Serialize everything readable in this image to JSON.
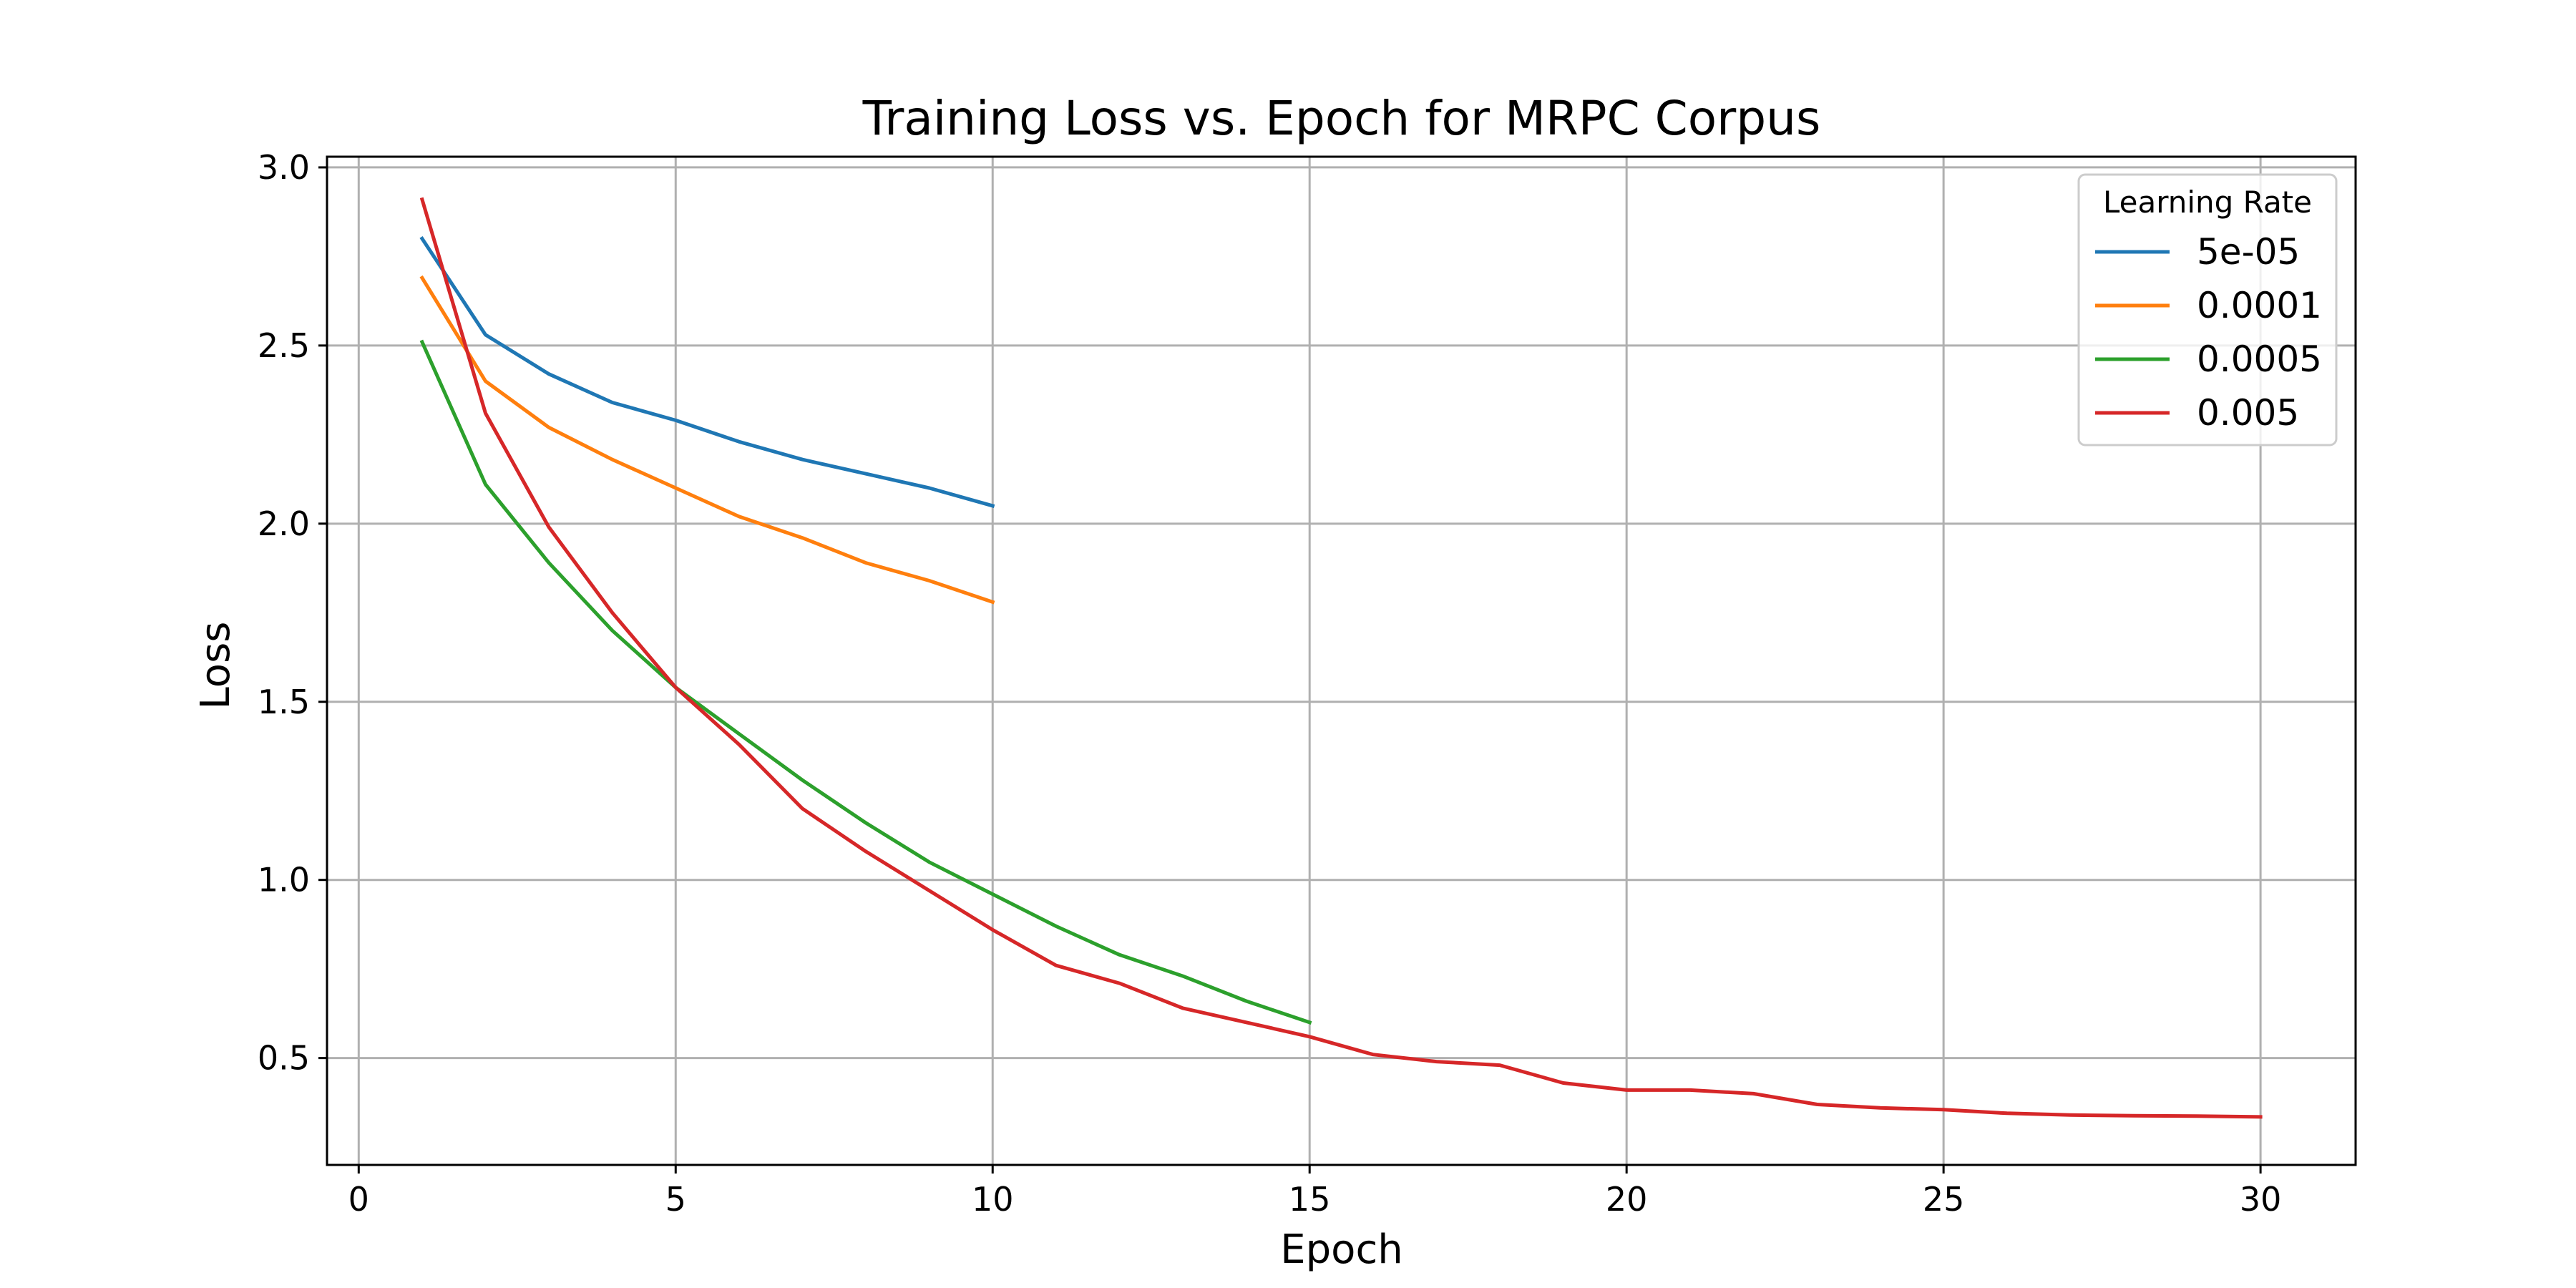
{
  "chart_data": {
    "type": "line",
    "title": "Training Loss vs. Epoch for MRPC Corpus",
    "xlabel": "Epoch",
    "ylabel": "Loss",
    "xlim": [
      -0.5,
      31.5
    ],
    "ylim": [
      0.2,
      3.03
    ],
    "xticks": [
      0,
      5,
      10,
      15,
      20,
      25,
      30
    ],
    "xtick_labels": [
      "0",
      "5",
      "10",
      "15",
      "20",
      "25",
      "30"
    ],
    "yticks": [
      0.5,
      1.0,
      1.5,
      2.0,
      2.5,
      3.0
    ],
    "ytick_labels": [
      "0.5",
      "1.0",
      "1.5",
      "2.0",
      "2.5",
      "3.0"
    ],
    "grid": true,
    "legend": {
      "title": "Learning Rate",
      "position": "top-right"
    },
    "series": [
      {
        "name": "5e-05",
        "color": "#1f77b4",
        "x": [
          1,
          2,
          3,
          4,
          5,
          6,
          7,
          8,
          9,
          10
        ],
        "values": [
          2.8,
          2.53,
          2.42,
          2.34,
          2.29,
          2.23,
          2.18,
          2.14,
          2.1,
          2.05
        ]
      },
      {
        "name": "0.0001",
        "color": "#ff7f0e",
        "x": [
          1,
          2,
          3,
          4,
          5,
          6,
          7,
          8,
          9,
          10
        ],
        "values": [
          2.69,
          2.4,
          2.27,
          2.18,
          2.1,
          2.02,
          1.96,
          1.89,
          1.84,
          1.78
        ]
      },
      {
        "name": "0.0005",
        "color": "#2ca02c",
        "x": [
          1,
          2,
          3,
          4,
          5,
          6,
          7,
          8,
          9,
          10,
          11,
          12,
          13,
          14,
          15
        ],
        "values": [
          2.51,
          2.11,
          1.89,
          1.7,
          1.54,
          1.41,
          1.28,
          1.16,
          1.05,
          0.96,
          0.87,
          0.79,
          0.73,
          0.66,
          0.6
        ]
      },
      {
        "name": "0.005",
        "color": "#d62728",
        "x": [
          1,
          2,
          3,
          4,
          5,
          6,
          7,
          8,
          9,
          10,
          11,
          12,
          13,
          14,
          15,
          16,
          17,
          18,
          19,
          20,
          21,
          22,
          23,
          24,
          25,
          26,
          27,
          28,
          29,
          30
        ],
        "values": [
          2.91,
          2.31,
          1.99,
          1.75,
          1.54,
          1.38,
          1.2,
          1.08,
          0.97,
          0.86,
          0.76,
          0.71,
          0.64,
          0.6,
          0.56,
          0.51,
          0.49,
          0.48,
          0.43,
          0.41,
          0.41,
          0.4,
          0.37,
          0.36,
          0.355,
          0.345,
          0.34,
          0.338,
          0.337,
          0.335
        ]
      }
    ]
  }
}
